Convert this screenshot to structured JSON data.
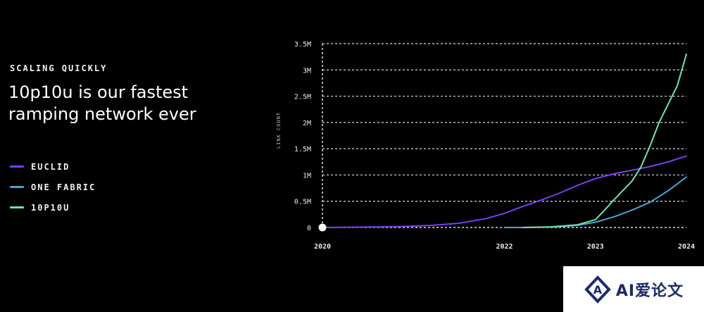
{
  "slide": {
    "eyebrow": "SCALING QUICKLY",
    "headline": "10p10u is our fastest ramping network ever"
  },
  "legend": [
    {
      "label": "EUCLID",
      "color": "#7b3ff2"
    },
    {
      "label": "ONE FABRIC",
      "color": "#4aa3d8"
    },
    {
      "label": "10P10U",
      "color": "#6fe3b0"
    }
  ],
  "chart_data": {
    "type": "line",
    "ylabel": "LINK COUNT",
    "y_ticks": [
      {
        "value": 0,
        "label": "0"
      },
      {
        "value": 500000,
        "label": "0.5M"
      },
      {
        "value": 1000000,
        "label": "1M"
      },
      {
        "value": 1500000,
        "label": "1.5M"
      },
      {
        "value": 2000000,
        "label": "2M"
      },
      {
        "value": 2500000,
        "label": "2.5M"
      },
      {
        "value": 3000000,
        "label": "3M"
      },
      {
        "value": 3500000,
        "label": "3.5M"
      }
    ],
    "x_ticks": [
      {
        "value": 2020,
        "label": "2020"
      },
      {
        "value": 2022,
        "label": "2022"
      },
      {
        "value": 2023,
        "label": "2023"
      },
      {
        "value": 2024,
        "label": "2024"
      }
    ],
    "xlim": [
      2020,
      2024
    ],
    "ylim": [
      0,
      3500000
    ],
    "grid": true,
    "series": [
      {
        "name": "EUCLID",
        "color": "#7b3ff2",
        "x": [
          2020,
          2020.3,
          2020.6,
          2020.9,
          2021.2,
          2021.5,
          2021.8,
          2022,
          2022.2,
          2022.4,
          2022.6,
          2022.8,
          2023,
          2023.2,
          2023.4,
          2023.6,
          2023.8,
          2024
        ],
        "y": [
          0,
          5000,
          10000,
          20000,
          40000,
          80000,
          170000,
          270000,
          400000,
          520000,
          650000,
          800000,
          930000,
          1020000,
          1090000,
          1160000,
          1250000,
          1360000
        ]
      },
      {
        "name": "ONE FABRIC",
        "color": "#4aa3d8",
        "x": [
          2022,
          2022.2,
          2022.4,
          2022.6,
          2022.8,
          2023,
          2023.2,
          2023.4,
          2023.6,
          2023.8,
          2024
        ],
        "y": [
          0,
          0,
          5000,
          15000,
          40000,
          100000,
          200000,
          330000,
          480000,
          700000,
          960000
        ]
      },
      {
        "name": "10P10U",
        "color": "#6fe3b0",
        "x": [
          2022.2,
          2022.5,
          2022.8,
          2023,
          2023.1,
          2023.2,
          2023.3,
          2023.4,
          2023.5,
          2023.6,
          2023.7,
          2023.8,
          2023.9,
          2024
        ],
        "y": [
          0,
          10000,
          50000,
          150000,
          330000,
          520000,
          700000,
          880000,
          1150000,
          1550000,
          2000000,
          2350000,
          2700000,
          3300000
        ]
      }
    ]
  },
  "watermark": {
    "text": "AI爱论文"
  }
}
